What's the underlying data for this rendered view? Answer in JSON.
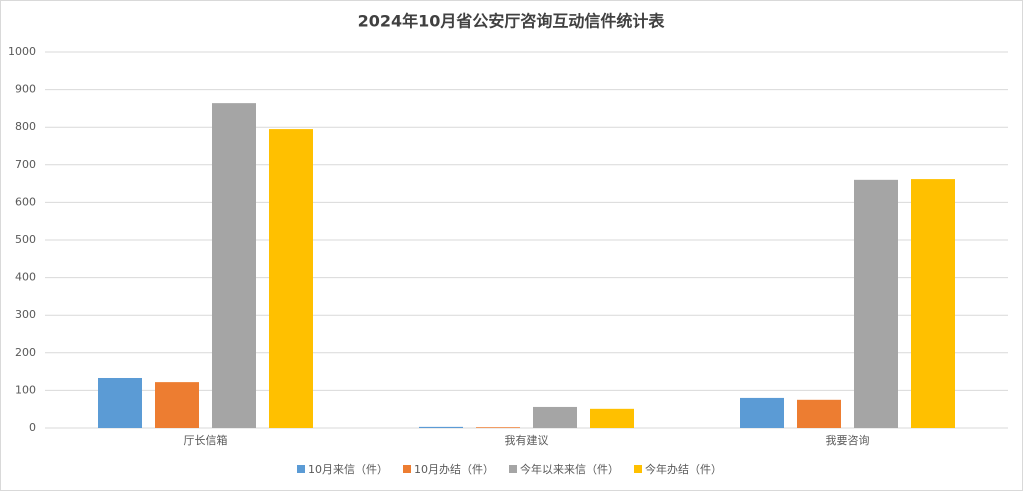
{
  "chart_data": {
    "type": "bar",
    "title": "2024年10月省公安厅咨询互动信件统计表",
    "categories": [
      "厅长信箱",
      "我有建议",
      "我要咨询"
    ],
    "series": [
      {
        "name": "10月来信（件）",
        "color": "#5b9bd5",
        "values": [
          133,
          3,
          80
        ]
      },
      {
        "name": "10月办结（件）",
        "color": "#ed7d31",
        "values": [
          122,
          2,
          75
        ]
      },
      {
        "name": "今年以来来信（件）",
        "color": "#a5a5a5",
        "values": [
          864,
          56,
          660
        ]
      },
      {
        "name": "今年办结（件）",
        "color": "#ffc000",
        "values": [
          795,
          51,
          662
        ]
      }
    ],
    "ylim": [
      0,
      1000
    ],
    "yticks": [
      0,
      100,
      200,
      300,
      400,
      500,
      600,
      700,
      800,
      900,
      1000
    ],
    "grid": true,
    "legend": "bottom"
  }
}
